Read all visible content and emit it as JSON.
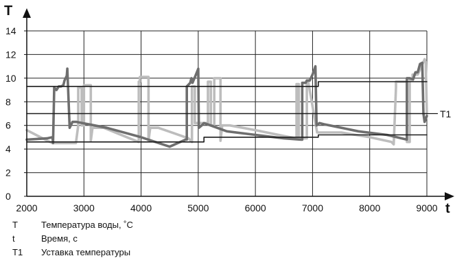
{
  "chart_data": {
    "type": "line",
    "ylabel": "T",
    "xlabel": "t",
    "xlim": [
      2000,
      9000
    ],
    "ylim": [
      0,
      14
    ],
    "xticks": [
      2000,
      3000,
      4000,
      5000,
      6000,
      7000,
      8000,
      9000
    ],
    "yticks": [
      0,
      2,
      4,
      6,
      8,
      10,
      12,
      14
    ],
    "grid": true,
    "annotations": [
      {
        "text": "T1",
        "x": 9000,
        "y": 7
      }
    ],
    "setpoint": {
      "name": "T1",
      "y": 7
    },
    "series": [
      {
        "color": "#bdbdbd",
        "x": [
          2000,
          2320,
          2450,
          2470,
          2860,
          2900,
          2900,
          2960,
          2960,
          3000,
          3000,
          3120,
          3120,
          3150,
          3350,
          3600,
          3800,
          3960,
          3960,
          3980,
          3980,
          4130,
          4130,
          4160,
          4300,
          4600,
          4830,
          4890,
          4890,
          4940,
          4940,
          5170,
          5170,
          5220,
          5220,
          5280,
          5280,
          5390,
          5390,
          5420,
          5550,
          6000,
          6500,
          6720,
          6720,
          6760,
          6760,
          6900,
          6900,
          6920,
          7080,
          7500,
          8000,
          8380,
          8420,
          8460,
          8460,
          8500,
          8650,
          8650,
          8700,
          8700,
          8750,
          8750,
          8840,
          8960,
          8980,
          9000
        ],
        "y": [
          5.6,
          4.8,
          4.5,
          4.5,
          4.5,
          6.0,
          9.2,
          9.2,
          6.0,
          6.0,
          9.4,
          9.4,
          4.7,
          5.8,
          5.8,
          5.3,
          4.9,
          4.6,
          9.7,
          9.7,
          10.1,
          10.1,
          4.7,
          5.8,
          5.8,
          5.3,
          4.9,
          4.6,
          9.3,
          9.3,
          6.2,
          6.2,
          9.7,
          9.7,
          6.0,
          6.0,
          10.0,
          10.0,
          4.7,
          6.0,
          6.0,
          5.6,
          5.1,
          4.9,
          9.5,
          9.5,
          4.9,
          4.9,
          9.8,
          9.8,
          5.4,
          5.4,
          5.0,
          4.6,
          4.4,
          9.2,
          9.7,
          9.7,
          9.7,
          4.6,
          4.6,
          9.8,
          9.8,
          10.3,
          10.3,
          11.6,
          11.4,
          7.0
        ]
      },
      {
        "color": "#6e6e6e",
        "x": [
          2000,
          2350,
          2450,
          2460,
          2480,
          2520,
          2560,
          2600,
          2640,
          2660,
          2700,
          2710,
          2750,
          2800,
          2870,
          3400,
          4000,
          4500,
          4780,
          4800,
          4800,
          4860,
          4880,
          4900,
          4960,
          5000,
          5010,
          5060,
          5100,
          5160,
          5500,
          6000,
          6500,
          6800,
          6820,
          6820,
          6880,
          6900,
          6950,
          7000,
          7050,
          7070,
          7120,
          7200,
          7300,
          7800,
          8300,
          8650,
          8650,
          8700,
          8760,
          8800,
          8840,
          8880,
          8920,
          8940,
          8960,
          9000
        ],
        "y": [
          4.8,
          4.9,
          5.0,
          4.5,
          9.2,
          9.0,
          9.3,
          9.3,
          9.4,
          9.8,
          10.2,
          10.8,
          5.8,
          6.3,
          6.3,
          5.8,
          5.0,
          4.2,
          4.8,
          4.8,
          9.3,
          9.6,
          10.0,
          9.6,
          10.3,
          10.8,
          5.8,
          6.0,
          6.2,
          6.1,
          5.5,
          5.2,
          4.9,
          4.8,
          4.8,
          9.6,
          9.6,
          9.8,
          9.8,
          10.3,
          11.0,
          6.0,
          6.2,
          6.1,
          6.0,
          5.5,
          5.2,
          4.8,
          10.0,
          10.0,
          9.9,
          10.5,
          10.5,
          11.2,
          11.3,
          7.0,
          6.3,
          6.8
        ]
      },
      {
        "color": "#1a1a1a",
        "x": [
          2000,
          5100,
          5100,
          7100,
          7100,
          9000
        ],
        "y": [
          4.6,
          4.6,
          5.0,
          5.0,
          5.2,
          5.2
        ]
      },
      {
        "color": "#1a1a1a",
        "x": [
          2000,
          7100,
          7100,
          9000
        ],
        "y": [
          9.3,
          9.3,
          9.7,
          9.7
        ]
      },
      {
        "name": "T1",
        "color": "#1a1a1a",
        "x": [
          2000,
          9000
        ],
        "y": [
          7.0,
          7.0
        ]
      }
    ]
  },
  "legend": [
    {
      "symbol": "T",
      "text": "Температура воды, ˚C"
    },
    {
      "symbol": "t",
      "text": "Время, с"
    },
    {
      "symbol": "T1",
      "text": "Уставка температуры"
    }
  ]
}
